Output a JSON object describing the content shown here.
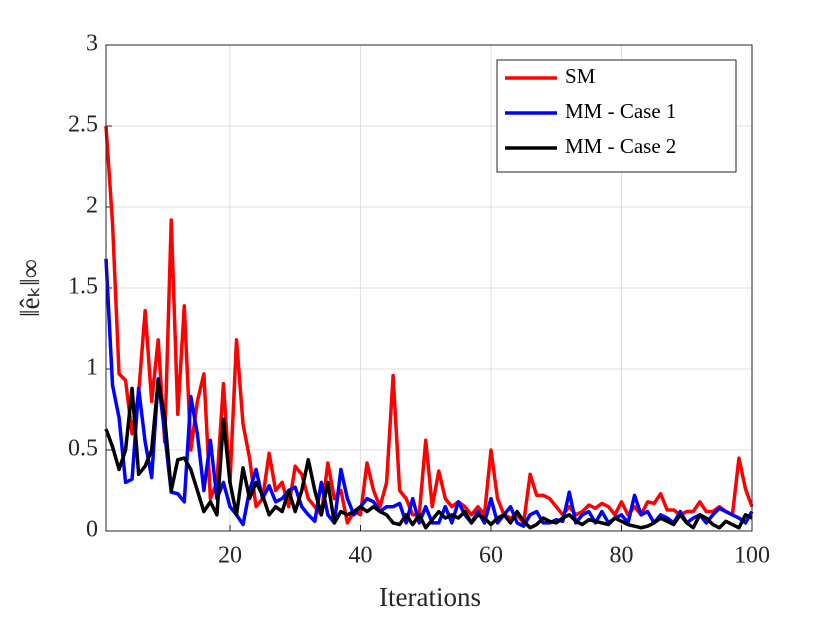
{
  "chart_data": {
    "type": "line",
    "xlabel": "Iterations",
    "ylabel": "‖êₖ‖∞",
    "x": [
      1,
      2,
      3,
      4,
      5,
      6,
      7,
      8,
      9,
      10,
      11,
      12,
      13,
      14,
      15,
      16,
      17,
      18,
      19,
      20,
      21,
      22,
      23,
      24,
      25,
      26,
      27,
      28,
      29,
      30,
      31,
      32,
      33,
      34,
      35,
      36,
      37,
      38,
      39,
      40,
      41,
      42,
      43,
      44,
      45,
      46,
      47,
      48,
      49,
      50,
      51,
      52,
      53,
      54,
      55,
      56,
      57,
      58,
      59,
      60,
      61,
      62,
      63,
      64,
      65,
      66,
      67,
      68,
      69,
      70,
      71,
      72,
      73,
      74,
      75,
      76,
      77,
      78,
      79,
      80,
      81,
      82,
      83,
      84,
      85,
      86,
      87,
      88,
      89,
      90,
      91,
      92,
      93,
      94,
      95,
      96,
      97,
      98,
      99,
      100
    ],
    "series": [
      {
        "name": "SM",
        "color": "#ff0000",
        "values": [
          2.5,
          1.9,
          0.97,
          0.93,
          0.6,
          0.85,
          1.36,
          0.8,
          1.18,
          0.55,
          1.92,
          0.72,
          1.39,
          0.5,
          0.8,
          0.97,
          0.2,
          0.3,
          0.91,
          0.3,
          1.18,
          0.66,
          0.45,
          0.15,
          0.2,
          0.48,
          0.25,
          0.3,
          0.15,
          0.4,
          0.35,
          0.2,
          0.15,
          0.1,
          0.42,
          0.2,
          0.25,
          0.05,
          0.12,
          0.1,
          0.42,
          0.25,
          0.15,
          0.3,
          0.96,
          0.25,
          0.2,
          0.1,
          0.1,
          0.56,
          0.15,
          0.37,
          0.2,
          0.15,
          0.18,
          0.15,
          0.1,
          0.15,
          0.1,
          0.5,
          0.2,
          0.1,
          0.08,
          0.1,
          0.05,
          0.35,
          0.22,
          0.22,
          0.2,
          0.15,
          0.1,
          0.15,
          0.1,
          0.12,
          0.16,
          0.14,
          0.17,
          0.15,
          0.1,
          0.18,
          0.1,
          0.15,
          0.1,
          0.18,
          0.17,
          0.23,
          0.13,
          0.13,
          0.1,
          0.12,
          0.12,
          0.18,
          0.12,
          0.12,
          0.15,
          0.12,
          0.1,
          0.45,
          0.26,
          0.15
        ]
      },
      {
        "name": "MM - Case 1",
        "color": "#0000ff",
        "values": [
          1.68,
          0.9,
          0.7,
          0.3,
          0.32,
          0.88,
          0.55,
          0.33,
          0.94,
          0.6,
          0.24,
          0.23,
          0.18,
          0.83,
          0.6,
          0.25,
          0.56,
          0.2,
          0.3,
          0.15,
          0.1,
          0.04,
          0.25,
          0.38,
          0.2,
          0.28,
          0.18,
          0.2,
          0.25,
          0.27,
          0.15,
          0.1,
          0.06,
          0.3,
          0.1,
          0.05,
          0.38,
          0.2,
          0.1,
          0.15,
          0.2,
          0.18,
          0.12,
          0.15,
          0.15,
          0.17,
          0.05,
          0.2,
          0.05,
          0.15,
          0.05,
          0.05,
          0.15,
          0.05,
          0.18,
          0.1,
          0.05,
          0.12,
          0.05,
          0.2,
          0.05,
          0.1,
          0.15,
          0.05,
          0.03,
          0.1,
          0.12,
          0.05,
          0.05,
          0.07,
          0.06,
          0.24,
          0.05,
          0.1,
          0.12,
          0.05,
          0.12,
          0.05,
          0.08,
          0.1,
          0.05,
          0.22,
          0.1,
          0.12,
          0.05,
          0.1,
          0.08,
          0.05,
          0.12,
          0.05,
          0.08,
          0.1,
          0.05,
          0.1,
          0.14,
          0.12,
          0.1,
          0.08,
          0.05,
          0.12
        ]
      },
      {
        "name": "MM - Case 2",
        "color": "#000000",
        "values": [
          0.63,
          0.52,
          0.38,
          0.5,
          0.88,
          0.35,
          0.4,
          0.5,
          0.93,
          0.7,
          0.25,
          0.44,
          0.45,
          0.38,
          0.25,
          0.12,
          0.18,
          0.1,
          0.69,
          0.3,
          0.1,
          0.39,
          0.2,
          0.3,
          0.22,
          0.1,
          0.15,
          0.12,
          0.25,
          0.12,
          0.25,
          0.44,
          0.25,
          0.1,
          0.3,
          0.05,
          0.12,
          0.1,
          0.12,
          0.15,
          0.12,
          0.15,
          0.12,
          0.1,
          0.05,
          0.04,
          0.1,
          0.04,
          0.1,
          0.02,
          0.07,
          0.12,
          0.08,
          0.1,
          0.08,
          0.12,
          0.05,
          0.1,
          0.08,
          0.04,
          0.08,
          0.1,
          0.05,
          0.12,
          0.06,
          0.02,
          0.04,
          0.08,
          0.06,
          0.05,
          0.08,
          0.1,
          0.06,
          0.04,
          0.07,
          0.06,
          0.05,
          0.04,
          0.08,
          0.06,
          0.04,
          0.03,
          0.02,
          0.03,
          0.05,
          0.08,
          0.06,
          0.04,
          0.1,
          0.05,
          0.02,
          0.1,
          0.08,
          0.04,
          0.02,
          0.06,
          0.04,
          0.02,
          0.1,
          0.08
        ]
      }
    ],
    "xlim": [
      1,
      100
    ],
    "xticks": [
      20,
      40,
      60,
      80,
      100
    ],
    "ylim": [
      0,
      3
    ],
    "yticks": [
      0,
      0.5,
      1,
      1.5,
      2,
      2.5,
      3
    ],
    "grid": true,
    "legend": "upper right"
  }
}
